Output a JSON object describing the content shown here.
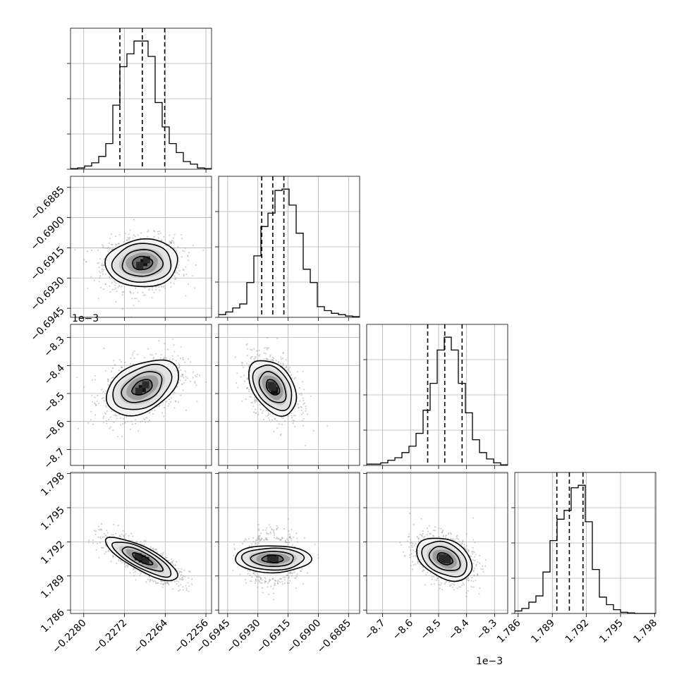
{
  "chart_data": {
    "type": "corner",
    "grid": true,
    "parameters": [
      {
        "ticks": [
          -0.228,
          -0.2272,
          -0.2264,
          -0.2256
        ],
        "tick_labels": [
          "−0.2280",
          "−0.2272",
          "−0.2264",
          "−0.2256"
        ],
        "range": [
          -0.22826,
          -0.22549
        ],
        "offset_label": ""
      },
      {
        "ticks": [
          -0.6945,
          -0.693,
          -0.6915,
          -0.69,
          -0.6885
        ],
        "tick_labels": [
          "−0.6945",
          "−0.6930",
          "−0.6915",
          "−0.6900",
          "−0.6885"
        ],
        "range": [
          -0.69495,
          -0.68795
        ],
        "offset_label": ""
      },
      {
        "ticks": [
          -8.7,
          -8.6,
          -8.5,
          -8.4,
          -8.3
        ],
        "tick_labels": [
          "−8.7",
          "−8.6",
          "−8.5",
          "−8.4",
          "−8.3"
        ],
        "range": [
          -8.757,
          -8.253
        ],
        "offset_label": "1e−3"
      },
      {
        "ticks": [
          1.786,
          1.789,
          1.792,
          1.795,
          1.798
        ],
        "tick_labels": [
          "1.786",
          "1.789",
          "1.792",
          "1.795",
          "1.798"
        ],
        "range": [
          1.7857,
          1.7981
        ],
        "offset_label": ""
      }
    ],
    "quantiles": [
      [
        -0.22729,
        -0.22685,
        -0.22641
      ],
      [
        -0.69281,
        -0.69226,
        -0.69171
      ],
      [
        -8.539,
        -8.478,
        -8.416
      ],
      [
        1.7894,
        1.7905,
        1.7917
      ]
    ],
    "histograms": [
      {
        "bins": [
          -0.22826,
          -0.22549
        ],
        "counts": [
          0.005,
          0.01,
          0.025,
          0.05,
          0.1,
          0.2,
          0.5,
          0.8,
          0.9,
          1.0,
          1.0,
          0.88,
          0.52,
          0.33,
          0.2,
          0.13,
          0.06,
          0.04,
          0.01,
          0.005
        ]
      },
      {
        "bins": [
          -0.69495,
          -0.68795
        ],
        "counts": [
          0.02,
          0.04,
          0.07,
          0.1,
          0.26,
          0.46,
          0.68,
          0.78,
          0.95,
          0.96,
          0.84,
          0.63,
          0.36,
          0.26,
          0.08,
          0.05,
          0.03,
          0.02,
          0.01,
          0.005
        ]
      },
      {
        "bins": [
          -8.757,
          -8.253
        ],
        "counts": [
          0.01,
          0.01,
          0.02,
          0.04,
          0.06,
          0.1,
          0.15,
          0.25,
          0.43,
          0.64,
          0.9,
          1.0,
          0.9,
          0.64,
          0.41,
          0.2,
          0.1,
          0.05,
          0.02,
          0.005
        ]
      },
      {
        "bins": [
          1.7857,
          1.7981
        ],
        "counts": [
          0.02,
          0.04,
          0.09,
          0.14,
          0.33,
          0.58,
          0.75,
          0.82,
          1.0,
          1.02,
          0.73,
          0.35,
          0.13,
          0.07,
          0.03,
          0.01,
          0.005,
          0,
          0,
          0
        ]
      }
    ],
    "pairs": [
      {
        "row": 1,
        "col": 0,
        "center": [
          -0.22685,
          -0.69226
        ],
        "sd": [
          0.00033,
          0.00055
        ],
        "rho": 0.05,
        "peak_cell_offsets": [
          [
            0.2,
            0.1
          ],
          [
            -0.3,
            -0.4
          ],
          [
            0.5,
            0.6
          ]
        ]
      },
      {
        "row": 2,
        "col": 0,
        "center": [
          -0.22685,
          -8.478
        ],
        "sd": [
          0.00033,
          0.046
        ],
        "rho": 0.4,
        "peak_cell_offsets": [
          [
            0.0,
            -0.2
          ],
          [
            -0.4,
            -0.6
          ],
          [
            0.4,
            0.4
          ]
        ]
      },
      {
        "row": 2,
        "col": 1,
        "center": [
          -0.69226,
          -8.478
        ],
        "sd": [
          0.00055,
          0.046
        ],
        "rho": -0.4,
        "peak_cell_offsets": [
          [
            0.3,
            -0.5
          ],
          [
            -0.3,
            0.3
          ],
          [
            0.0,
            0.0
          ]
        ]
      },
      {
        "row": 3,
        "col": 0,
        "center": [
          -0.22685,
          1.7905
        ],
        "sd": [
          0.00033,
          0.00088
        ],
        "rho": -0.8,
        "peak_cell_offsets": [
          [
            0.0,
            0.0
          ],
          [
            -0.5,
            0.4
          ],
          [
            0.4,
            -0.3
          ]
        ]
      },
      {
        "row": 3,
        "col": 1,
        "center": [
          -0.69226,
          1.7905
        ],
        "sd": [
          0.00055,
          0.00088
        ],
        "rho": 0.0,
        "peak_cell_offsets": [
          [
            0.0,
            0.0
          ],
          [
            0.4,
            -0.2
          ],
          [
            -0.4,
            0.2
          ]
        ]
      },
      {
        "row": 3,
        "col": 2,
        "center": [
          -8.478,
          1.7905
        ],
        "sd": [
          0.046,
          0.00088
        ],
        "rho": -0.35,
        "peak_cell_offsets": [
          [
            0.0,
            0.0
          ],
          [
            -0.4,
            0.2
          ],
          [
            0.4,
            -0.2
          ]
        ]
      }
    ]
  }
}
